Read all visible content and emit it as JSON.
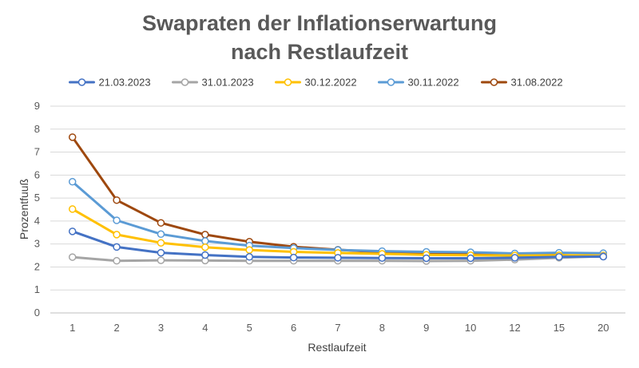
{
  "chart_data": {
    "type": "line",
    "title_lines": [
      "Swapraten der Inflationserwartung",
      "nach Restlaufzeit"
    ],
    "xlabel": "Restlaufzeit",
    "ylabel": "Prozentfuuß",
    "categories": [
      "1",
      "2",
      "3",
      "4",
      "5",
      "6",
      "7",
      "8",
      "9",
      "10",
      "12",
      "15",
      "20"
    ],
    "ylim": [
      0,
      9
    ],
    "yticks": [
      "0",
      "1",
      "2",
      "3",
      "4",
      "5",
      "6",
      "7",
      "8",
      "9"
    ],
    "grid": true,
    "legend_position": "top",
    "series": [
      {
        "name": "21.03.2023",
        "color": "#4472C4",
        "values": [
          3.55,
          2.87,
          2.62,
          2.52,
          2.44,
          2.41,
          2.4,
          2.39,
          2.38,
          2.38,
          2.4,
          2.44,
          2.45
        ]
      },
      {
        "name": "31.01.2023",
        "color": "#A5A5A5",
        "values": [
          2.43,
          2.27,
          2.29,
          2.28,
          2.27,
          2.27,
          2.27,
          2.27,
          2.26,
          2.27,
          2.32,
          2.4,
          2.47
        ]
      },
      {
        "name": "30.12.2022",
        "color": "#FFC000",
        "values": [
          4.52,
          3.41,
          3.05,
          2.86,
          2.74,
          2.66,
          2.61,
          2.57,
          2.53,
          2.51,
          2.5,
          2.51,
          2.5
        ]
      },
      {
        "name": "30.11.2022",
        "color": "#5B9BD5",
        "values": [
          5.71,
          4.03,
          3.43,
          3.13,
          2.93,
          2.82,
          2.74,
          2.69,
          2.66,
          2.64,
          2.59,
          2.62,
          2.6
        ]
      },
      {
        "name": "31.08.2022",
        "color": "#9E480E",
        "values": [
          7.65,
          4.91,
          3.92,
          3.41,
          3.1,
          2.88,
          2.75,
          2.64,
          2.58,
          2.56,
          2.52,
          2.52,
          2.46
        ]
      }
    ]
  }
}
